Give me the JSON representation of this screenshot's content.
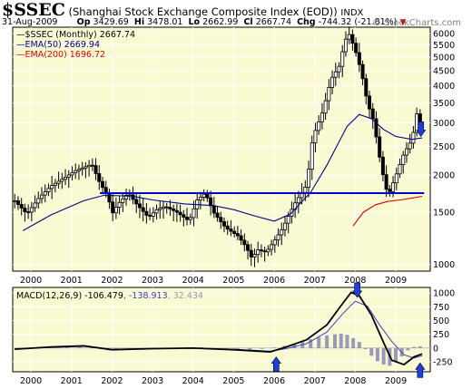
{
  "header": {
    "symbol": "$SSEC",
    "name": "(Shanghai Stock Exchange Composite Index (EOD))",
    "exchange": "INDX",
    "date": "31-Aug-2009",
    "op_label": "Op",
    "op": "3429.69",
    "hi_label": "Hi",
    "hi": "3478.01",
    "lo_label": "Lo",
    "lo": "2662.99",
    "cl_label": "Cl",
    "cl": "2667.74",
    "chg_label": "Chg",
    "chg": "-744.32 (-21.81%)",
    "brand": "© StockCharts.com"
  },
  "colors": {
    "panel_bg": "#fafad2",
    "grid": "#ffffff",
    "price": "#000000",
    "ema50": "#00008b",
    "ema200": "#dd0000",
    "support_line": "#0000cd",
    "macd": "#000000",
    "signal": "#4040c0",
    "histogram": "#9a9ab8",
    "arrow": "#1a3ee8",
    "chg_marker": "#cc0000"
  },
  "chart_data": [
    {
      "type": "candlestick",
      "title": "$SSEC (Monthly)",
      "title_value": "2667.74",
      "y_scale": "log",
      "ylim": [
        950,
        6300
      ],
      "xlim": [
        1999.55,
        2009.85
      ],
      "y_ticks": [
        1000,
        1500,
        2000,
        2500,
        3000,
        3500,
        4000,
        4500,
        5000,
        5500,
        6000
      ],
      "x_ticks": [
        2000,
        2001,
        2002,
        2003,
        2004,
        2005,
        2006,
        2007,
        2008,
        2009
      ],
      "legend": [
        {
          "name": "EMA(50)",
          "value": "2669.94",
          "color": "#00008b"
        },
        {
          "name": "EMA(200)",
          "value": "1696.72",
          "color": "#dd0000"
        }
      ],
      "legend_position": "top-left",
      "close_series": [
        [
          1999.6,
          1640
        ],
        [
          1999.9,
          1480
        ],
        [
          2000.2,
          1680
        ],
        [
          2000.5,
          1840
        ],
        [
          2000.8,
          1950
        ],
        [
          2001.1,
          2070
        ],
        [
          2001.4,
          2150
        ],
        [
          2001.5,
          2180
        ],
        [
          2001.7,
          1880
        ],
        [
          2001.9,
          1700
        ],
        [
          2002.0,
          1480
        ],
        [
          2002.15,
          1600
        ],
        [
          2002.4,
          1740
        ],
        [
          2002.6,
          1600
        ],
        [
          2002.9,
          1440
        ],
        [
          2003.1,
          1530
        ],
        [
          2003.3,
          1570
        ],
        [
          2003.6,
          1500
        ],
        [
          2003.9,
          1400
        ],
        [
          2004.1,
          1650
        ],
        [
          2004.3,
          1740
        ],
        [
          2004.5,
          1500
        ],
        [
          2004.8,
          1330
        ],
        [
          2005.1,
          1250
        ],
        [
          2005.3,
          1150
        ],
        [
          2005.45,
          1050
        ],
        [
          2005.6,
          1120
        ],
        [
          2005.8,
          1100
        ],
        [
          2006.0,
          1200
        ],
        [
          2006.2,
          1320
        ],
        [
          2006.5,
          1600
        ],
        [
          2006.8,
          1850
        ],
        [
          2006.95,
          2680
        ],
        [
          2007.2,
          3280
        ],
        [
          2007.4,
          4200
        ],
        [
          2007.6,
          4650
        ],
        [
          2007.75,
          5700
        ],
        [
          2007.85,
          5950
        ],
        [
          2008.0,
          5270
        ],
        [
          2008.15,
          4460
        ],
        [
          2008.3,
          3500
        ],
        [
          2008.45,
          3050
        ],
        [
          2008.6,
          2300
        ],
        [
          2008.75,
          1800
        ],
        [
          2008.85,
          1760
        ],
        [
          2009.0,
          1990
        ],
        [
          2009.2,
          2370
        ],
        [
          2009.4,
          2630
        ],
        [
          2009.55,
          3410
        ],
        [
          2009.65,
          2667.74
        ]
      ],
      "ema50_series": [
        [
          1999.8,
          1300
        ],
        [
          2000.5,
          1470
        ],
        [
          2001.3,
          1640
        ],
        [
          2001.8,
          1710
        ],
        [
          2002.5,
          1700
        ],
        [
          2003.0,
          1650
        ],
        [
          2003.8,
          1600
        ],
        [
          2004.5,
          1580
        ],
        [
          2005.0,
          1530
        ],
        [
          2005.5,
          1460
        ],
        [
          2006.0,
          1400
        ],
        [
          2006.4,
          1480
        ],
        [
          2006.9,
          1750
        ],
        [
          2007.3,
          2160
        ],
        [
          2007.8,
          2920
        ],
        [
          2008.1,
          3200
        ],
        [
          2008.4,
          3100
        ],
        [
          2008.7,
          2850
        ],
        [
          2009.0,
          2700
        ],
        [
          2009.4,
          2640
        ],
        [
          2009.65,
          2669.94
        ]
      ],
      "ema200_series": [
        [
          2007.95,
          1350
        ],
        [
          2008.2,
          1500
        ],
        [
          2008.5,
          1590
        ],
        [
          2008.8,
          1630
        ],
        [
          2009.1,
          1650
        ],
        [
          2009.4,
          1675
        ],
        [
          2009.65,
          1696.72
        ]
      ],
      "support_line": {
        "from": [
          2001.7,
          1740
        ],
        "to": [
          2009.7,
          1740
        ]
      },
      "arrow": {
        "x": 2009.62,
        "y": 2700,
        "direction": "down"
      }
    },
    {
      "type": "line",
      "title": "MACD(12,26,9)",
      "legend": [
        {
          "name": "MACD(12,26,9)",
          "value": "-106.479",
          "color": "#000000"
        },
        {
          "name": "",
          "value": "-138.913",
          "color": "#4040c0"
        },
        {
          "name": "",
          "value": "32.434",
          "color": "#9a9ab8"
        }
      ],
      "ylim": [
        -430,
        1100
      ],
      "xlim": [
        1999.55,
        2009.85
      ],
      "y_ticks": [
        1000,
        750,
        500,
        250,
        0,
        -250
      ],
      "x_ticks": [
        2000,
        2001,
        2002,
        2003,
        2004,
        2005,
        2006,
        2007,
        2008,
        2009
      ],
      "macd_series": [
        [
          1999.6,
          -20
        ],
        [
          2000.5,
          20
        ],
        [
          2001.3,
          40
        ],
        [
          2002.0,
          -30
        ],
        [
          2003.0,
          -10
        ],
        [
          2004.0,
          0
        ],
        [
          2005.0,
          -30
        ],
        [
          2005.9,
          -70
        ],
        [
          2006.3,
          20
        ],
        [
          2006.8,
          150
        ],
        [
          2007.3,
          420
        ],
        [
          2007.7,
          820
        ],
        [
          2007.9,
          1010
        ],
        [
          2008.1,
          950
        ],
        [
          2008.4,
          600
        ],
        [
          2008.7,
          100
        ],
        [
          2008.9,
          -220
        ],
        [
          2009.2,
          -300
        ],
        [
          2009.45,
          -160
        ],
        [
          2009.65,
          -106.479
        ]
      ],
      "signal_series": [
        [
          1999.6,
          -10
        ],
        [
          2000.5,
          10
        ],
        [
          2001.3,
          30
        ],
        [
          2002.0,
          -20
        ],
        [
          2003.0,
          -5
        ],
        [
          2004.0,
          0
        ],
        [
          2005.0,
          -20
        ],
        [
          2005.9,
          -55
        ],
        [
          2006.3,
          -10
        ],
        [
          2006.8,
          80
        ],
        [
          2007.3,
          290
        ],
        [
          2007.7,
          630
        ],
        [
          2008.0,
          850
        ],
        [
          2008.3,
          760
        ],
        [
          2008.6,
          420
        ],
        [
          2008.9,
          120
        ],
        [
          2009.2,
          -120
        ],
        [
          2009.45,
          -180
        ],
        [
          2009.65,
          -138.913
        ]
      ],
      "histogram": [
        [
          1999.7,
          -20
        ],
        [
          2000.0,
          10
        ],
        [
          2000.3,
          20
        ],
        [
          2000.6,
          20
        ],
        [
          2000.9,
          25
        ],
        [
          2001.2,
          20
        ],
        [
          2001.5,
          15
        ],
        [
          2001.8,
          -15
        ],
        [
          2002.1,
          -25
        ],
        [
          2002.4,
          -10
        ],
        [
          2002.7,
          -15
        ],
        [
          2003.0,
          -10
        ],
        [
          2003.3,
          5
        ],
        [
          2003.6,
          -5
        ],
        [
          2003.9,
          10
        ],
        [
          2004.2,
          15
        ],
        [
          2004.5,
          -10
        ],
        [
          2004.8,
          -20
        ],
        [
          2005.1,
          -25
        ],
        [
          2005.4,
          -25
        ],
        [
          2005.7,
          -15
        ],
        [
          2006.0,
          10
        ],
        [
          2006.25,
          40
        ],
        [
          2006.5,
          70
        ],
        [
          2006.7,
          110
        ],
        [
          2006.9,
          160
        ],
        [
          2007.1,
          200
        ],
        [
          2007.3,
          230
        ],
        [
          2007.5,
          250
        ],
        [
          2007.65,
          260
        ],
        [
          2007.8,
          240
        ],
        [
          2007.95,
          180
        ],
        [
          2008.1,
          110
        ],
        [
          2008.25,
          -20
        ],
        [
          2008.4,
          -140
        ],
        [
          2008.55,
          -240
        ],
        [
          2008.7,
          -300
        ],
        [
          2008.85,
          -320
        ],
        [
          2009.0,
          -250
        ],
        [
          2009.15,
          -150
        ],
        [
          2009.3,
          -40
        ],
        [
          2009.45,
          20
        ],
        [
          2009.6,
          32.434
        ]
      ],
      "arrows": [
        {
          "x": 2006.05,
          "y": -160,
          "direction": "up"
        },
        {
          "x": 2008.05,
          "y": 920,
          "direction": "down"
        },
        {
          "x": 2009.6,
          "y": -270,
          "direction": "up"
        }
      ]
    }
  ]
}
